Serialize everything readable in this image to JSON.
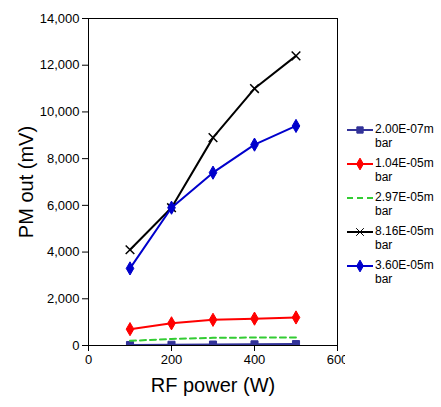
{
  "chart_data": {
    "type": "line",
    "x_label": "RF power (W)",
    "y_label": "PM out (mV)",
    "xlim": [
      0,
      600
    ],
    "xticks": [
      0,
      200,
      400,
      600
    ],
    "ylim": [
      0,
      14000
    ],
    "yticks": [
      0,
      2000,
      4000,
      6000,
      8000,
      10000,
      12000,
      14000
    ],
    "grid": false,
    "legend": "right",
    "x": [
      100,
      200,
      300,
      400,
      500
    ],
    "series": [
      {
        "name": "2.00E-07mbar",
        "color": "#333399",
        "marker": "square",
        "line_style": "solid",
        "values": [
          20,
          30,
          40,
          50,
          60
        ]
      },
      {
        "name": "1.04E-05mbar",
        "color": "#ff0000",
        "marker": "diamond",
        "line_style": "solid",
        "values": [
          700,
          950,
          1100,
          1150,
          1200
        ]
      },
      {
        "name": "2.97E-05mbar",
        "color": "#33cc33",
        "marker": "none",
        "line_style": "dashed",
        "values": [
          200,
          280,
          330,
          340,
          340
        ]
      },
      {
        "name": "8.16E-05mbar",
        "color": "#000000",
        "marker": "times",
        "line_style": "solid",
        "values": [
          4100,
          5900,
          8900,
          11000,
          12400
        ]
      },
      {
        "name": "3.60E-05mbar",
        "color": "#0000cc",
        "marker": "diamond",
        "line_style": "solid",
        "values": [
          3300,
          5900,
          7400,
          8600,
          9400
        ]
      }
    ]
  }
}
